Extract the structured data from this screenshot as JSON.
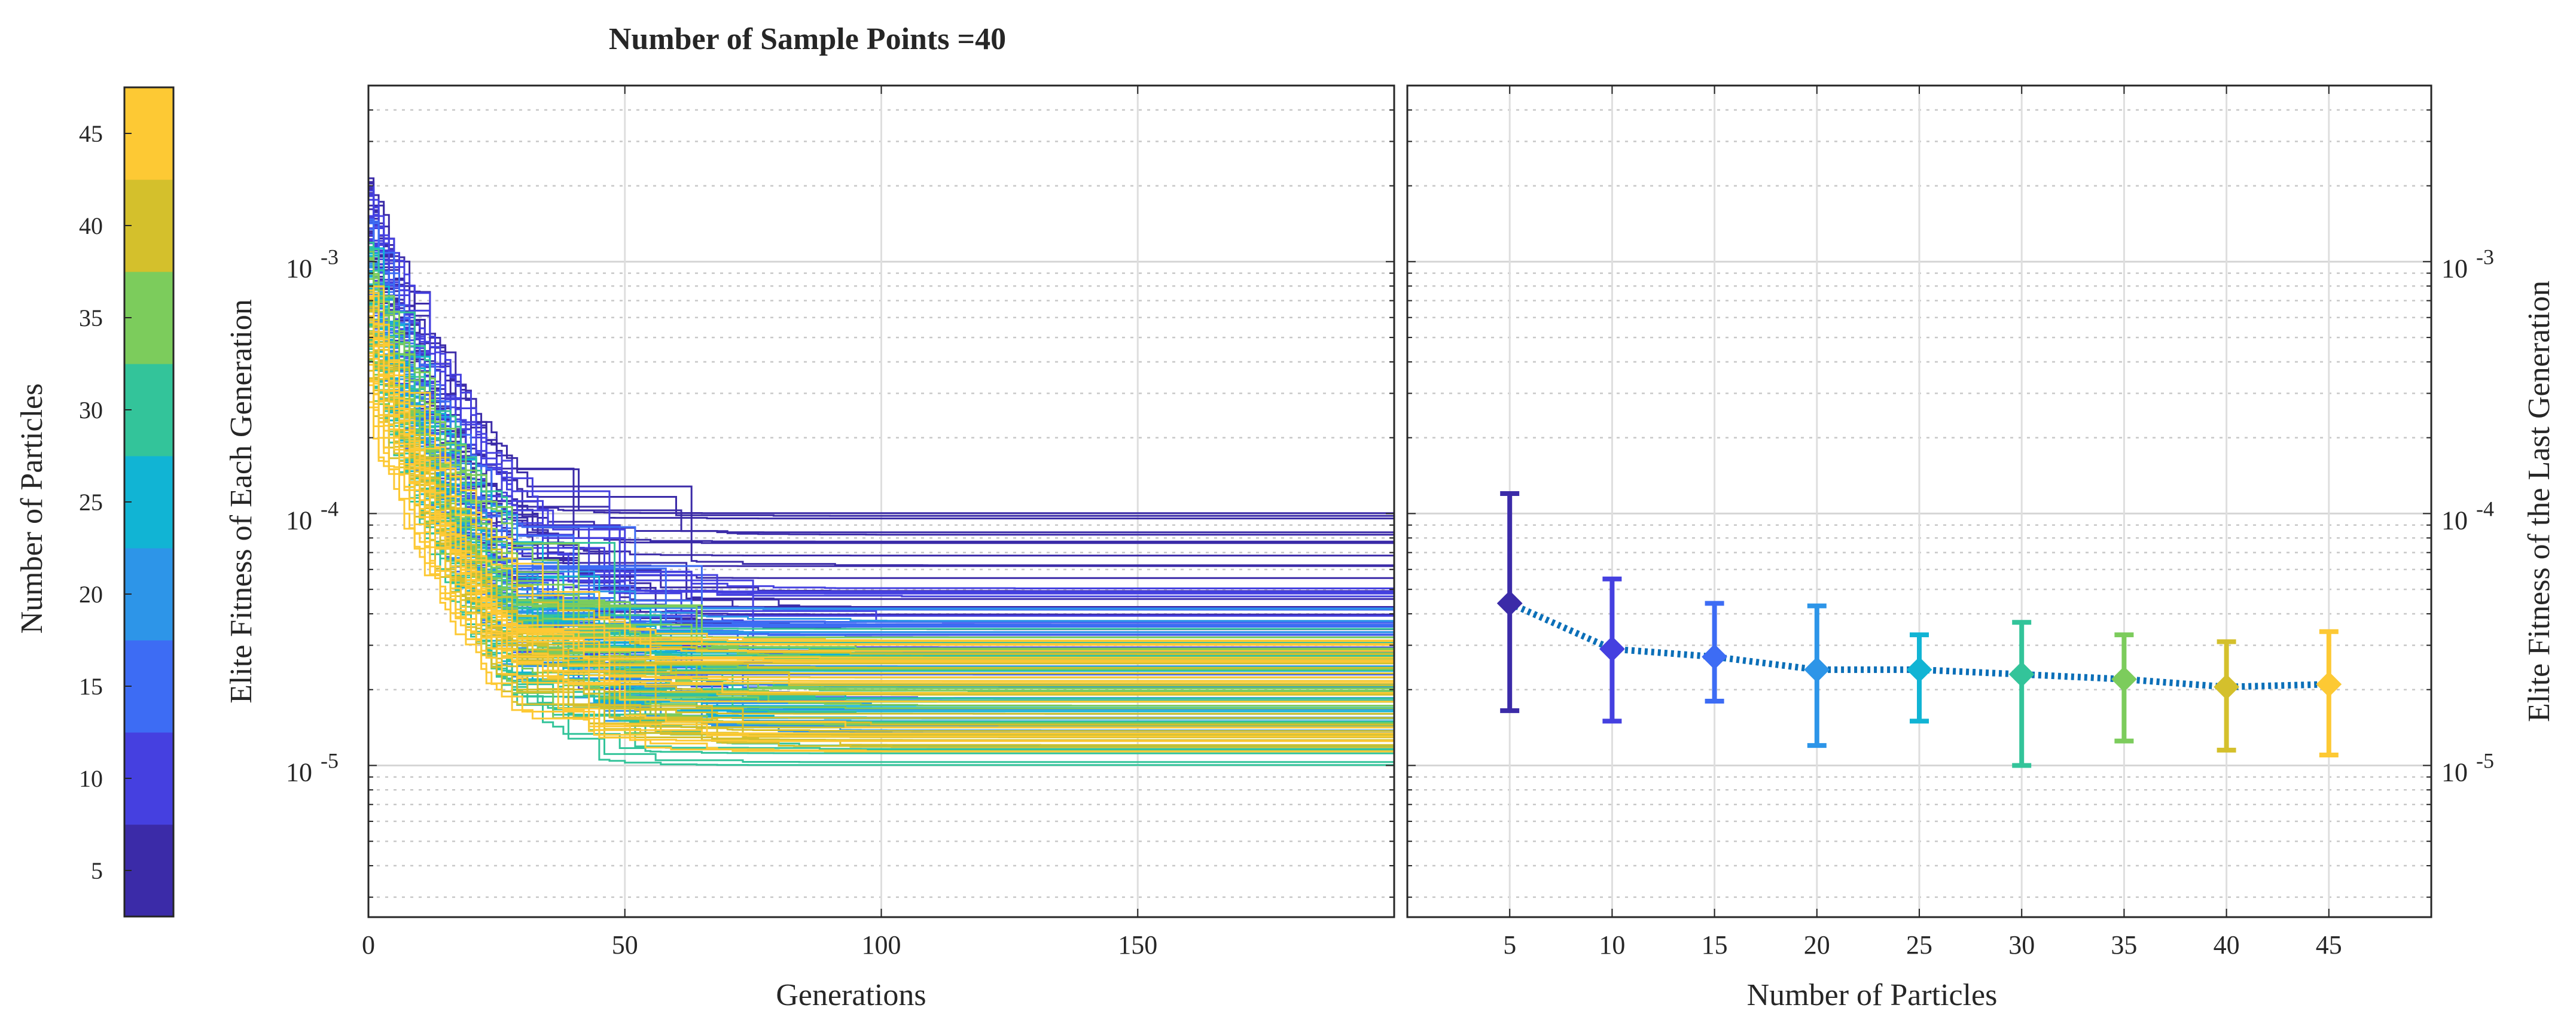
{
  "title": "Number of Sample Points =40",
  "colorbar": {
    "label": "Number of Particles",
    "ticks": [
      "5",
      "10",
      "15",
      "20",
      "25",
      "30",
      "35",
      "40",
      "45"
    ],
    "colors": [
      "#3b2ba8",
      "#4540e0",
      "#3d6cf4",
      "#2d95e8",
      "#11b4d4",
      "#33c49a",
      "#7ccc5c",
      "#d4c02c",
      "#fdc934"
    ]
  },
  "chart_data": [
    {
      "type": "line",
      "panel": "left",
      "xlabel": "Generations",
      "ylabel": "Elite Fitness of Each Generation",
      "xlim": [
        0,
        200
      ],
      "ylim": [
        2.5e-06,
        0.005
      ],
      "yscale": "log",
      "xticks": [
        "0",
        "50",
        "100",
        "150"
      ],
      "yticks": [
        {
          "base": "10",
          "exp": "-5"
        },
        {
          "base": "10",
          "exp": "-4"
        },
        {
          "base": "10",
          "exp": "-3"
        }
      ],
      "series_groups": [
        {
          "particles": 5,
          "runs": 20,
          "start_range": [
            0.0012,
            0.0023
          ],
          "final_range": [
            3e-05,
            0.00012
          ]
        },
        {
          "particles": 10,
          "runs": 20,
          "start_range": [
            0.0009,
            0.002
          ],
          "final_range": [
            1.8e-05,
            5.5e-05
          ]
        },
        {
          "particles": 15,
          "runs": 20,
          "start_range": [
            0.0006,
            0.0016
          ],
          "final_range": [
            1.8e-05,
            4.4e-05
          ]
        },
        {
          "particles": 20,
          "runs": 20,
          "start_range": [
            0.0005,
            0.0014
          ],
          "final_range": [
            1.3e-05,
            4.3e-05
          ]
        },
        {
          "particles": 25,
          "runs": 20,
          "start_range": [
            0.00045,
            0.0013
          ],
          "final_range": [
            1.5e-05,
            3.3e-05
          ]
        },
        {
          "particles": 30,
          "runs": 20,
          "start_range": [
            0.0004,
            0.0012
          ],
          "final_range": [
            1e-05,
            3.7e-05
          ]
        },
        {
          "particles": 35,
          "runs": 20,
          "start_range": [
            0.00035,
            0.0011
          ],
          "final_range": [
            1.25e-05,
            3.3e-05
          ]
        },
        {
          "particles": 40,
          "runs": 20,
          "start_range": [
            0.0003,
            0.001
          ],
          "final_range": [
            1.15e-05,
            3.1e-05
          ]
        },
        {
          "particles": 45,
          "runs": 20,
          "start_range": [
            0.00025,
            0.00095
          ],
          "final_range": [
            1.1e-05,
            3.4e-05
          ]
        }
      ]
    },
    {
      "type": "errorbar",
      "panel": "right",
      "xlabel": "Number of Particles",
      "ylabel": "Elite Fitness of the Last Generation",
      "xlim": [
        0,
        50
      ],
      "ylim": [
        2.5e-06,
        0.005
      ],
      "yscale": "log",
      "xticks": [
        "5",
        "10",
        "15",
        "20",
        "25",
        "30",
        "35",
        "40",
        "45"
      ],
      "yticks": [
        {
          "base": "10",
          "exp": "-5"
        },
        {
          "base": "10",
          "exp": "-4"
        },
        {
          "base": "10",
          "exp": "-3"
        }
      ],
      "points": [
        {
          "x": 5,
          "mean": 4.4e-05,
          "lower": 1.65e-05,
          "upper": 0.00012
        },
        {
          "x": 10,
          "mean": 2.9e-05,
          "lower": 1.5e-05,
          "upper": 5.5e-05
        },
        {
          "x": 15,
          "mean": 2.7e-05,
          "lower": 1.8e-05,
          "upper": 4.4e-05
        },
        {
          "x": 20,
          "mean": 2.4e-05,
          "lower": 1.2e-05,
          "upper": 4.3e-05
        },
        {
          "x": 25,
          "mean": 2.4e-05,
          "lower": 1.5e-05,
          "upper": 3.3e-05
        },
        {
          "x": 30,
          "mean": 2.3e-05,
          "lower": 1e-05,
          "upper": 3.7e-05
        },
        {
          "x": 35,
          "mean": 2.2e-05,
          "lower": 1.25e-05,
          "upper": 3.3e-05
        },
        {
          "x": 40,
          "mean": 2.05e-05,
          "lower": 1.15e-05,
          "upper": 3.1e-05
        },
        {
          "x": 45,
          "mean": 2.1e-05,
          "lower": 1.1e-05,
          "upper": 3.4e-05
        }
      ],
      "trend_color": "#0b6fb8"
    }
  ]
}
